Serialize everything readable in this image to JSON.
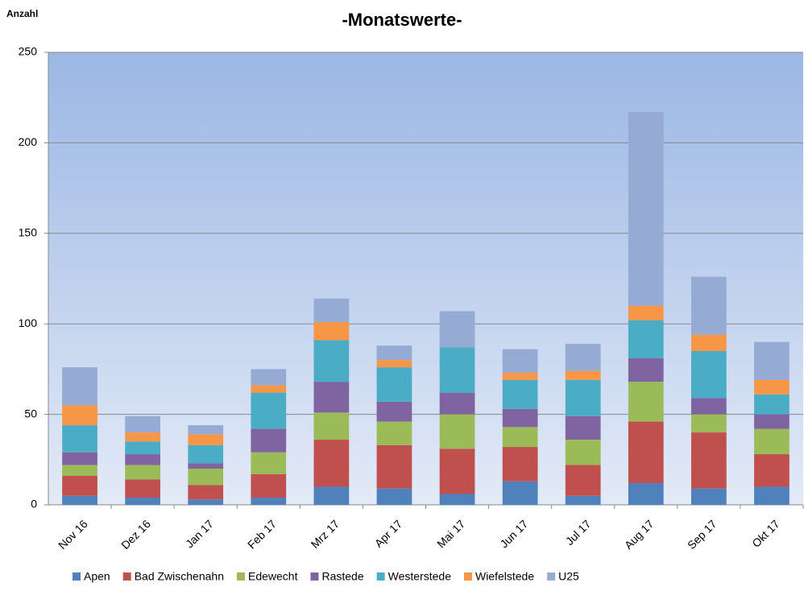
{
  "chart_data": {
    "type": "stacked_bar",
    "title": "-Monatswerte-",
    "y_label": "Anzahl",
    "categories": [
      "Nov 16",
      "Dez 16",
      "Jan 17",
      "Feb 17",
      "Mrz 17",
      "Apr 17",
      "Mai 17",
      "Jun 17",
      "Jul 17",
      "Aug 17",
      "Sep 17",
      "Okt 17"
    ],
    "series": [
      {
        "name": "Apen",
        "color": "#4f81bd",
        "values": [
          5,
          4,
          3,
          4,
          10,
          9,
          6,
          13,
          5,
          12,
          9,
          10
        ]
      },
      {
        "name": "Bad Zwischenahn",
        "color": "#c0504d",
        "values": [
          11,
          10,
          8,
          13,
          26,
          24,
          25,
          19,
          17,
          34,
          31,
          18
        ]
      },
      {
        "name": "Edewecht",
        "color": "#9bbb59",
        "values": [
          6,
          8,
          9,
          12,
          15,
          13,
          19,
          11,
          14,
          22,
          10,
          14
        ]
      },
      {
        "name": "Rastede",
        "color": "#8064a2",
        "values": [
          7,
          6,
          3,
          13,
          17,
          11,
          12,
          10,
          13,
          13,
          9,
          8
        ]
      },
      {
        "name": "Westerstede",
        "color": "#4bacc6",
        "values": [
          15,
          7,
          10,
          20,
          23,
          19,
          25,
          16,
          20,
          21,
          26,
          11
        ]
      },
      {
        "name": "Wiefelstede",
        "color": "#f79646",
        "values": [
          11,
          5,
          6,
          4,
          10,
          4,
          0,
          4,
          5,
          8,
          9,
          8
        ]
      },
      {
        "name": "U25",
        "color": "#95abd4",
        "values": [
          21,
          9,
          5,
          9,
          13,
          8,
          20,
          13,
          15,
          107,
          32,
          21
        ]
      }
    ],
    "ylim": [
      0,
      250
    ],
    "yticks": [
      0,
      50,
      100,
      150,
      200,
      250
    ],
    "grid": true,
    "legend": "bottom"
  }
}
